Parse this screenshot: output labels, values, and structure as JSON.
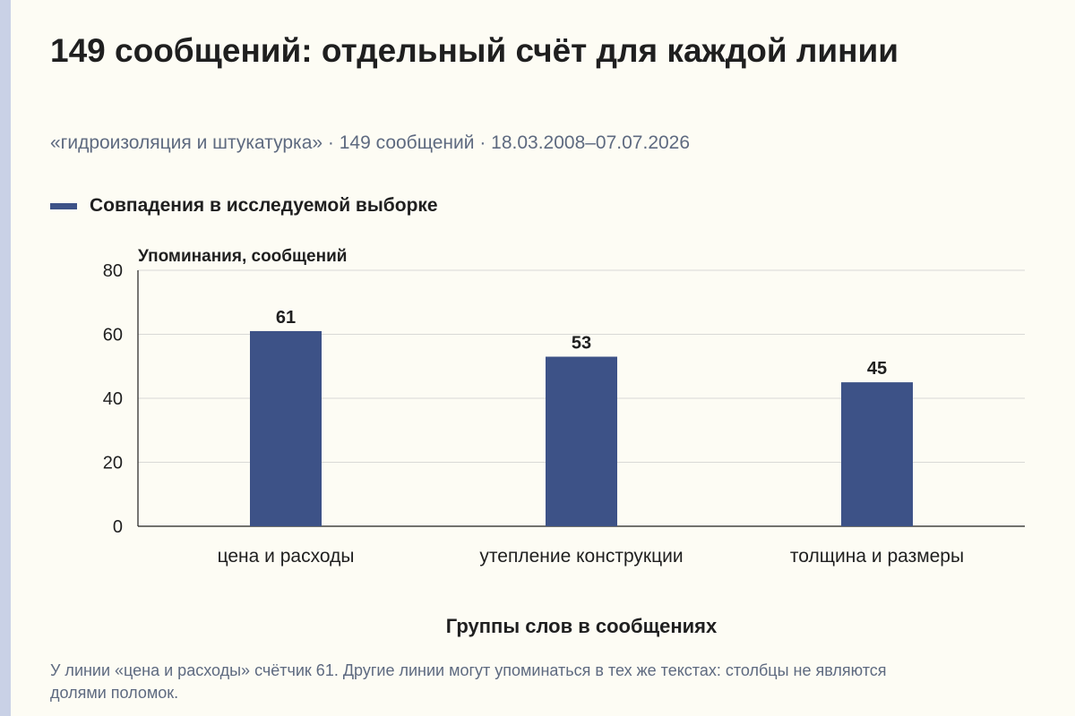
{
  "header": {
    "title": "149 сообщений: отдельный счёт для каждой линии",
    "subtitle": "«гидроизоляция и штукатурка» · 149 сообщений · 18.03.2008–07.07.2026"
  },
  "footnote": "У линии «цена и расходы» счётчик 61. Другие линии могут упоминаться в тех же текстах: столбцы не являются долями поломок.",
  "colors": {
    "bar": "#3d5287",
    "grid": "#d9d9d6",
    "axis": "#1f1f1f"
  },
  "chart_data": {
    "type": "bar",
    "categories": [
      "цена и расходы",
      "утепление конструкции",
      "толщина и размеры"
    ],
    "series": [
      {
        "name": "Совпадения в исследуемой выборке",
        "values": [
          61,
          53,
          45
        ]
      }
    ],
    "xlabel": "Группы слов в сообщениях",
    "ylabel": "Упоминания, сообщений",
    "ylim": [
      0,
      80
    ],
    "yticks": [
      0,
      20,
      40,
      60,
      80
    ],
    "grid": true,
    "legend": "top-left",
    "data_labels": true
  }
}
